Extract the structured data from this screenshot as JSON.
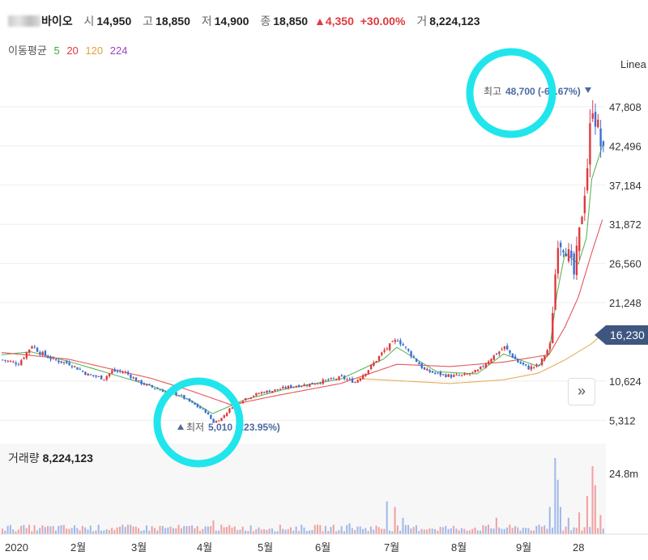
{
  "header": {
    "name": "바이오",
    "open_label": "시",
    "open": "14,950",
    "high_label": "고",
    "high": "18,850",
    "low_label": "저",
    "low": "14,900",
    "close_label": "종",
    "close": "18,850",
    "change": "▲4,350",
    "change_pct": "+30.00%",
    "volume_label": "거",
    "volume": "8,224,123"
  },
  "ma_legend": {
    "label": "이동평균",
    "items": [
      {
        "period": "5",
        "color": "#3daa3d"
      },
      {
        "period": "20",
        "color": "#e0393e"
      },
      {
        "period": "120",
        "color": "#e0a040"
      },
      {
        "period": "224",
        "color": "#9b44c0"
      }
    ]
  },
  "scale_label": "Linea",
  "volume_panel": {
    "label": "거래량",
    "value": "8,224,123"
  },
  "colors": {
    "up": "#e0393e",
    "down": "#3a6fd6",
    "highlight_circle": "#21e5ec",
    "price_tag": "#3f5680"
  },
  "chart_data": {
    "type": "candlestick",
    "y_ticks": [
      47808,
      42496,
      37184,
      31872,
      26560,
      21248,
      10624,
      5312
    ],
    "ylim": [
      2500,
      53500
    ],
    "y_tick_labels": [
      "47,808",
      "42,496",
      "37,184",
      "31,872",
      "26,560",
      "21,248",
      "10,624",
      "5,312"
    ],
    "x_labels": [
      "2020",
      "2월",
      "3월",
      "4월",
      "5월",
      "6월",
      "7월",
      "8월",
      "9월",
      "28"
    ],
    "current_price": "16,230",
    "max_annotation": {
      "label": "최고",
      "value": "48,700 (-66.67%)",
      "price": 48700
    },
    "min_annotation": {
      "label": "최저",
      "value": "5,010 (223.95%)",
      "price": 5010
    },
    "volume_axis_label": "24.8m",
    "volume_axis_value": 24800000,
    "price_path": [
      [
        0,
        13500
      ],
      [
        6,
        13000
      ],
      [
        11,
        15500
      ],
      [
        14,
        14500
      ],
      [
        19,
        13500
      ],
      [
        25,
        13000
      ],
      [
        32,
        11500
      ],
      [
        38,
        11000
      ],
      [
        41,
        12000
      ],
      [
        46,
        11800
      ],
      [
        51,
        10500
      ],
      [
        56,
        9800
      ],
      [
        60,
        9300
      ],
      [
        66,
        8800
      ],
      [
        71,
        7600
      ],
      [
        76,
        6500
      ],
      [
        79,
        5010
      ],
      [
        82,
        5600
      ],
      [
        86,
        7200
      ],
      [
        91,
        8300
      ],
      [
        97,
        9100
      ],
      [
        102,
        9400
      ],
      [
        108,
        9900
      ],
      [
        115,
        10200
      ],
      [
        121,
        10700
      ],
      [
        127,
        11100
      ],
      [
        132,
        10500
      ],
      [
        137,
        12200
      ],
      [
        143,
        14800
      ],
      [
        148,
        16300
      ],
      [
        153,
        14200
      ],
      [
        158,
        12100
      ],
      [
        163,
        11600
      ],
      [
        168,
        11300
      ],
      [
        173,
        11400
      ],
      [
        178,
        12000
      ],
      [
        183,
        13800
      ],
      [
        188,
        15200
      ],
      [
        193,
        13200
      ],
      [
        197,
        12400
      ],
      [
        201,
        12800
      ],
      [
        205,
        15500
      ],
      [
        208,
        30000
      ],
      [
        211,
        28800
      ],
      [
        214,
        25000
      ],
      [
        216,
        30500
      ],
      [
        219,
        40000
      ],
      [
        221,
        48700
      ],
      [
        223,
        44500
      ],
      [
        225,
        41000
      ]
    ],
    "ma_series": [
      {
        "name": "5",
        "values": [
          [
            0,
            14200
          ],
          [
            11,
            14600
          ],
          [
            25,
            13300
          ],
          [
            41,
            11600
          ],
          [
            56,
            10000
          ],
          [
            71,
            8000
          ],
          [
            79,
            6200
          ],
          [
            91,
            8100
          ],
          [
            108,
            9700
          ],
          [
            127,
            10900
          ],
          [
            143,
            13600
          ],
          [
            148,
            15200
          ],
          [
            163,
            11900
          ],
          [
            178,
            11600
          ],
          [
            188,
            14300
          ],
          [
            201,
            12600
          ],
          [
            205,
            14300
          ],
          [
            208,
            22500
          ],
          [
            211,
            28000
          ],
          [
            216,
            26500
          ],
          [
            219,
            30000
          ],
          [
            221,
            38000
          ],
          [
            225,
            42500
          ]
        ]
      },
      {
        "name": "20",
        "values": [
          [
            0,
            14500
          ],
          [
            25,
            13600
          ],
          [
            56,
            11000
          ],
          [
            71,
            9300
          ],
          [
            86,
            7400
          ],
          [
            102,
            8600
          ],
          [
            127,
            10300
          ],
          [
            148,
            12900
          ],
          [
            168,
            12600
          ],
          [
            188,
            13200
          ],
          [
            205,
            14200
          ],
          [
            211,
            18000
          ],
          [
            216,
            22000
          ],
          [
            221,
            28000
          ],
          [
            225,
            32500
          ]
        ]
      },
      {
        "name": "120",
        "values": [
          [
            132,
            11000
          ],
          [
            168,
            10300
          ],
          [
            188,
            10800
          ],
          [
            201,
            11700
          ],
          [
            211,
            13500
          ],
          [
            221,
            15700
          ],
          [
            225,
            17000
          ]
        ]
      }
    ],
    "volume_spikes": [
      [
        0,
        0.02
      ],
      [
        30,
        0.03
      ],
      [
        60,
        0.03
      ],
      [
        79,
        0.05
      ],
      [
        100,
        0.02
      ],
      [
        130,
        0.04
      ],
      [
        144,
        0.12
      ],
      [
        147,
        0.1
      ],
      [
        150,
        0.06
      ],
      [
        170,
        0.02
      ],
      [
        185,
        0.06
      ],
      [
        200,
        0.03
      ],
      [
        205,
        0.1
      ],
      [
        207,
        0.28
      ],
      [
        208,
        0.2
      ],
      [
        209,
        0.1
      ],
      [
        212,
        0.06
      ],
      [
        216,
        0.08
      ],
      [
        219,
        0.14
      ],
      [
        221,
        0.25
      ],
      [
        222,
        0.18
      ],
      [
        224,
        0.07
      ]
    ]
  }
}
